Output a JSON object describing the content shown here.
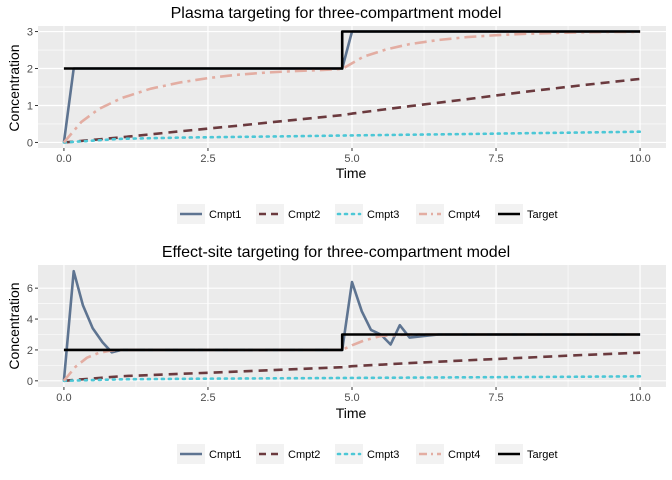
{
  "colors": {
    "panel_bg": "#EBEBEB",
    "grid": "#FFFFFF",
    "axis_text": "#4D4D4D",
    "Cmpt1": "#5E7491",
    "Cmpt2": "#6B3A3E",
    "Cmpt3": "#4CC7D6",
    "Cmpt4": "#E3ADA2",
    "Target": "#000000"
  },
  "chart_data": [
    {
      "type": "line",
      "title": "Plasma targeting for three-compartment model",
      "xlabel": "Time",
      "ylabel": "Concentration",
      "xlim": [
        -0.45,
        10.45
      ],
      "ylim": [
        -0.15,
        3.15
      ],
      "xticks": [
        0,
        2.5,
        5,
        7.5,
        10
      ],
      "xtick_labels": [
        "0.0",
        "2.5",
        "5.0",
        "7.5",
        "10.0"
      ],
      "yticks": [
        0,
        1,
        2,
        3
      ],
      "ytick_labels": [
        "0",
        "1",
        "2",
        "3"
      ],
      "grid": true,
      "legend_position": "bottom",
      "series": [
        {
          "name": "Cmpt1",
          "linestyle": "solid",
          "x": [
            0,
            0.17,
            0.5,
            1,
            2,
            3,
            4,
            4.83,
            5.0,
            5.5,
            6,
            7,
            8,
            9,
            10
          ],
          "y": [
            0,
            2.0,
            2.0,
            2.0,
            2.0,
            2.0,
            2.0,
            2.0,
            3.0,
            3.0,
            3.0,
            3.0,
            3.0,
            3.0,
            3.0
          ]
        },
        {
          "name": "Cmpt2",
          "linestyle": "dashed",
          "x": [
            0,
            1,
            2,
            3,
            4,
            4.83,
            5,
            6,
            7,
            8,
            9,
            10
          ],
          "y": [
            0,
            0.14,
            0.3,
            0.45,
            0.61,
            0.74,
            0.78,
            0.98,
            1.17,
            1.37,
            1.55,
            1.72
          ]
        },
        {
          "name": "Cmpt3",
          "linestyle": "dotted",
          "x": [
            0,
            1,
            2,
            3,
            4,
            5,
            6,
            7,
            8,
            9,
            10
          ],
          "y": [
            0,
            0.1,
            0.13,
            0.15,
            0.17,
            0.19,
            0.21,
            0.23,
            0.25,
            0.27,
            0.29
          ]
        },
        {
          "name": "Cmpt4",
          "linestyle": "dashdot",
          "x": [
            0,
            0.3,
            0.6,
            1,
            1.5,
            2,
            2.5,
            3,
            3.5,
            4,
            4.5,
            4.83,
            5.2,
            5.6,
            6,
            6.5,
            7,
            7.5,
            8,
            8.5,
            9,
            9.5,
            10
          ],
          "y": [
            0,
            0.55,
            0.9,
            1.2,
            1.45,
            1.62,
            1.74,
            1.83,
            1.89,
            1.93,
            1.96,
            1.99,
            2.32,
            2.52,
            2.66,
            2.77,
            2.85,
            2.9,
            2.94,
            2.96,
            2.98,
            2.99,
            2.99
          ]
        },
        {
          "name": "Target",
          "linestyle": "solid",
          "x": [
            0,
            4.83,
            4.83,
            10
          ],
          "y": [
            2,
            2,
            3,
            3
          ]
        }
      ]
    },
    {
      "type": "line",
      "title": "Effect-site targeting for three-compartment model",
      "xlabel": "Time",
      "ylabel": "Concentration",
      "xlim": [
        -0.45,
        10.45
      ],
      "ylim": [
        -0.4,
        7.5
      ],
      "xticks": [
        0,
        2.5,
        5,
        7.5,
        10
      ],
      "xtick_labels": [
        "0.0",
        "2.5",
        "5.0",
        "7.5",
        "10.0"
      ],
      "yticks": [
        0,
        2,
        4,
        6
      ],
      "ytick_labels": [
        "0",
        "2",
        "4",
        "6"
      ],
      "grid": true,
      "legend_position": "bottom",
      "series": [
        {
          "name": "Cmpt1",
          "linestyle": "solid",
          "x": [
            0,
            0.17,
            0.33,
            0.5,
            0.67,
            0.83,
            1.0,
            2,
            3,
            4,
            4.83,
            5.0,
            5.17,
            5.33,
            5.5,
            5.67,
            5.83,
            6.0,
            6.5,
            7,
            8,
            9,
            10
          ],
          "y": [
            0,
            7.1,
            4.9,
            3.4,
            2.5,
            1.85,
            2.0,
            2.0,
            2.0,
            2.0,
            2.0,
            6.4,
            4.5,
            3.3,
            3.0,
            2.35,
            3.6,
            2.8,
            3.0,
            3.0,
            3.0,
            3.0,
            3.0
          ]
        },
        {
          "name": "Cmpt2",
          "linestyle": "dashed",
          "x": [
            0,
            1,
            2,
            3,
            4,
            4.83,
            5,
            6,
            7,
            8,
            9,
            10
          ],
          "y": [
            0,
            0.3,
            0.45,
            0.6,
            0.75,
            0.88,
            0.95,
            1.15,
            1.33,
            1.5,
            1.67,
            1.82
          ]
        },
        {
          "name": "Cmpt3",
          "linestyle": "dotted",
          "x": [
            0,
            1,
            2,
            3,
            4,
            5,
            6,
            7,
            8,
            9,
            10
          ],
          "y": [
            0,
            0.1,
            0.13,
            0.15,
            0.17,
            0.19,
            0.21,
            0.23,
            0.25,
            0.27,
            0.29
          ]
        },
        {
          "name": "Cmpt4",
          "linestyle": "dashdot",
          "x": [
            0,
            0.2,
            0.4,
            0.6,
            0.8,
            1.0,
            1.5,
            2,
            3,
            4,
            4.83,
            5.0,
            5.2,
            5.5,
            6,
            7,
            8,
            9,
            10
          ],
          "y": [
            0,
            0.9,
            1.5,
            1.8,
            1.95,
            2.0,
            2.0,
            2.0,
            2.0,
            2.0,
            2.0,
            2.3,
            2.6,
            2.9,
            3.0,
            3.0,
            3.0,
            3.0,
            3.0
          ]
        },
        {
          "name": "Target",
          "linestyle": "solid",
          "x": [
            0,
            4.83,
            4.83,
            10
          ],
          "y": [
            2,
            2,
            3,
            3
          ]
        }
      ]
    }
  ]
}
